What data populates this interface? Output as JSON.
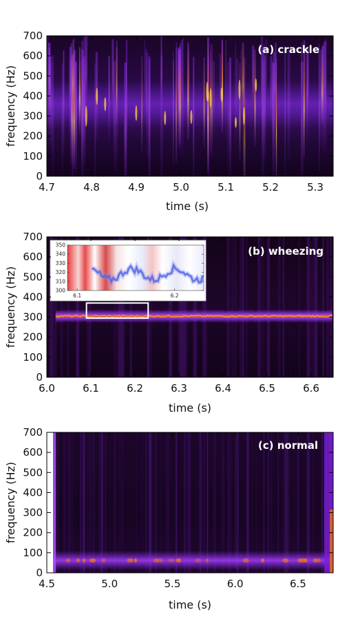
{
  "chart_data": [
    {
      "type": "heatmap",
      "label": "(a) crackle",
      "xlabel": "time (s)",
      "ylabel": "frequency (Hz)",
      "xlim": [
        4.7,
        5.34
      ],
      "ylim": [
        0,
        700
      ],
      "xticks": [
        "4.7",
        "4.8",
        "4.9",
        "5.0",
        "5.1",
        "5.2",
        "5.3"
      ],
      "yticks": [
        "0",
        "100",
        "200",
        "300",
        "400",
        "500",
        "600",
        "700"
      ],
      "colormap": "magma-like (black → purple → orange → yellow)",
      "features": [
        {
          "kind": "broadband vertical transients",
          "x_range": [
            4.7,
            5.34
          ],
          "y_range": [
            0,
            700
          ]
        },
        {
          "kind": "band",
          "y_range": [
            300,
            450
          ]
        }
      ]
    },
    {
      "type": "heatmap",
      "label": "(b) wheezing",
      "xlabel": "time (s)",
      "ylabel": "frequency (Hz)",
      "xlim": [
        6.0,
        6.65
      ],
      "ylim": [
        0,
        700
      ],
      "xticks": [
        "6.0",
        "6.1",
        "6.2",
        "6.3",
        "6.4",
        "6.5",
        "6.6"
      ],
      "yticks": [
        "0",
        "100",
        "200",
        "300",
        "400",
        "500",
        "600",
        "700"
      ],
      "features": [
        {
          "kind": "tonal band",
          "x_range": [
            6.02,
            6.65
          ],
          "frequency": 305
        }
      ],
      "highlight_box": {
        "x_range": [
          6.09,
          6.23
        ],
        "y_range": [
          300,
          350
        ]
      },
      "inset": {
        "xticks": [
          "6.1",
          "6.2"
        ],
        "yticks": [
          "300",
          "310",
          "320",
          "330",
          "340",
          "350"
        ],
        "xlim": [
          6.09,
          6.23
        ],
        "ylim": [
          300,
          350
        ],
        "colormap": "diverging red-white-blue"
      }
    },
    {
      "type": "heatmap",
      "label": "(c) normal",
      "xlabel": "time (s)",
      "ylabel": "frequency (Hz)",
      "xlim": [
        4.5,
        6.78
      ],
      "ylim": [
        0,
        700
      ],
      "xticks": [
        "4.5",
        "5.0",
        "5.5",
        "6.0",
        "6.5"
      ],
      "yticks": [
        "0",
        "100",
        "200",
        "300",
        "400",
        "500",
        "600",
        "700"
      ],
      "features": [
        {
          "kind": "low-frequency band",
          "frequency": 60
        }
      ]
    }
  ],
  "colors": {
    "background_dark": "#0c0310",
    "purple": "#6a18c8",
    "violet": "#9a2cf0",
    "orange": "#e8701c",
    "yellow": "#ffd040",
    "white": "#ffffff"
  }
}
